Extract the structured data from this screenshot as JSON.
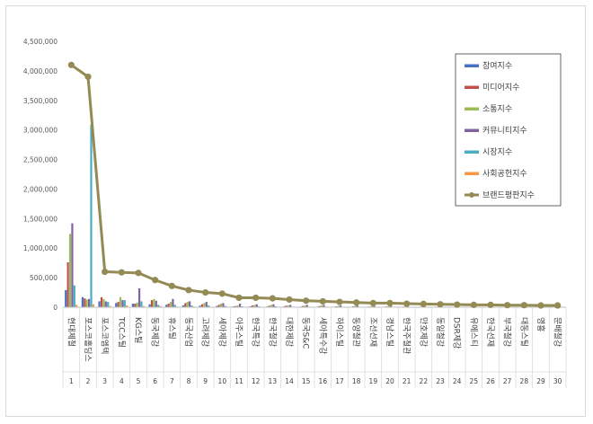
{
  "chart_data": {
    "type": "bar",
    "ylim": [
      0,
      4500000
    ],
    "yticks": [
      "0",
      "500,000",
      "1,000,000",
      "1,500,000",
      "2,000,000",
      "2,500,000",
      "3,000,000",
      "3,500,000",
      "4,000,000",
      "4,500,000"
    ],
    "grid": false,
    "legend": "top-right",
    "numbers": [
      "1",
      "2",
      "3",
      "4",
      "5",
      "6",
      "7",
      "8",
      "9",
      "10",
      "11",
      "12",
      "13",
      "14",
      "15",
      "16",
      "17",
      "18",
      "19",
      "20",
      "21",
      "22",
      "23",
      "24",
      "25",
      "26",
      "27",
      "28",
      "29",
      "30"
    ],
    "categories": [
      "현대제철",
      "포스코홀딩스",
      "포스코엠텍",
      "TCC스틸",
      "KG스틸",
      "동국제강",
      "휴스틸",
      "동국산업",
      "고려제강",
      "세아제강",
      "아주스틸",
      "한국특강",
      "한국철강",
      "대한제강",
      "동국S&C",
      "세아특수강",
      "하이스틸",
      "동양철관",
      "조선선재",
      "경남스틸",
      "한국주철관",
      "만호제강",
      "동일철강",
      "DSR제강",
      "유에스티",
      "한국선재",
      "부국철강",
      "대동스틸",
      "영흥",
      "문배철강"
    ],
    "series": [
      {
        "name": "참여지수",
        "color": "#4472C4",
        "values": [
          290000,
          170000,
          100000,
          70000,
          60000,
          50000,
          40000,
          30000,
          25000,
          20000,
          15000,
          15000,
          12000,
          12000,
          10000,
          10000,
          9000,
          8000,
          8000,
          7000,
          7000,
          6000,
          6000,
          5000,
          5000,
          5000,
          5000,
          4000,
          4000,
          4000
        ]
      },
      {
        "name": "미디어지수",
        "color": "#C0504D",
        "values": [
          760000,
          150000,
          170000,
          90000,
          60000,
          120000,
          60000,
          70000,
          50000,
          40000,
          20000,
          30000,
          25000,
          25000,
          20000,
          20000,
          15000,
          15000,
          12000,
          12000,
          10000,
          10000,
          10000,
          8000,
          8000,
          8000,
          7000,
          7000,
          6000,
          6000
        ]
      },
      {
        "name": "소통지수",
        "color": "#9BBB59",
        "values": [
          1240000,
          130000,
          140000,
          170000,
          80000,
          140000,
          90000,
          90000,
          70000,
          60000,
          30000,
          40000,
          40000,
          30000,
          30000,
          30000,
          25000,
          25000,
          20000,
          20000,
          15000,
          15000,
          15000,
          12000,
          12000,
          12000,
          10000,
          10000,
          10000,
          10000
        ]
      },
      {
        "name": "커뮤니티지수",
        "color": "#8064A2",
        "values": [
          1420000,
          140000,
          100000,
          120000,
          320000,
          110000,
          140000,
          100000,
          90000,
          70000,
          60000,
          50000,
          50000,
          40000,
          40000,
          40000,
          30000,
          30000,
          25000,
          25000,
          20000,
          20000,
          20000,
          15000,
          15000,
          15000,
          12000,
          12000,
          12000,
          10000
        ]
      },
      {
        "name": "시장지수",
        "color": "#4BACC6",
        "values": [
          370000,
          3090000,
          90000,
          120000,
          100000,
          40000,
          40000,
          30000,
          30000,
          20000,
          15000,
          15000,
          15000,
          10000,
          10000,
          10000,
          8000,
          8000,
          8000,
          6000,
          6000,
          6000,
          5000,
          5000,
          5000,
          5000,
          4000,
          4000,
          4000,
          4000
        ]
      },
      {
        "name": "사회공헌지수",
        "color": "#F79646",
        "values": [
          40000,
          50000,
          20000,
          30000,
          20000,
          20000,
          10000,
          10000,
          10000,
          10000,
          5000,
          5000,
          5000,
          5000,
          5000,
          5000,
          4000,
          4000,
          3000,
          3000,
          3000,
          3000,
          3000,
          2000,
          2000,
          2000,
          2000,
          2000,
          2000,
          2000
        ]
      }
    ],
    "line": {
      "name": "브랜드평판지수",
      "color": "#948A54",
      "values": [
        4100000,
        3900000,
        600000,
        590000,
        580000,
        460000,
        360000,
        290000,
        250000,
        230000,
        160000,
        160000,
        150000,
        130000,
        110000,
        100000,
        90000,
        80000,
        70000,
        70000,
        60000,
        55000,
        50000,
        45000,
        40000,
        40000,
        35000,
        35000,
        30000,
        30000
      ]
    }
  }
}
